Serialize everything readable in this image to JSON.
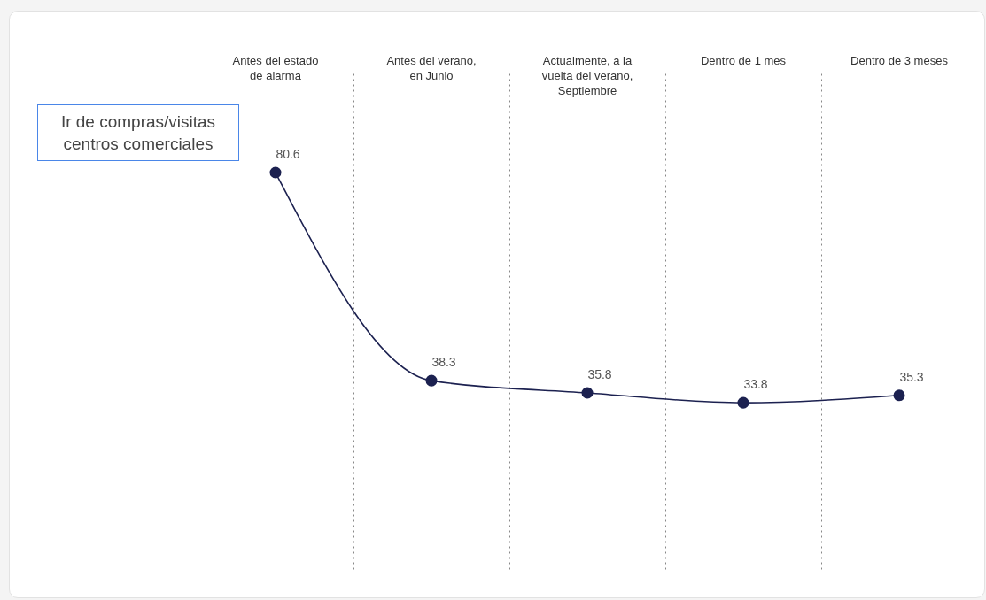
{
  "chart_data": {
    "type": "line",
    "title": "Ir de compras/visitas centros comerciales",
    "categories": [
      "Antes del estado de alarma",
      "Antes del verano, en Junio",
      "Actualmente, a la vuelta del verano, Septiembre",
      "Dentro de 1 mes",
      "Dentro de 3 meses"
    ],
    "series": [
      {
        "color": "#1c2150",
        "values": [
          80.6,
          38.3,
          35.8,
          33.8,
          35.3
        ]
      }
    ],
    "data_labels": true,
    "marker": "circle",
    "grid": "x"
  }
}
